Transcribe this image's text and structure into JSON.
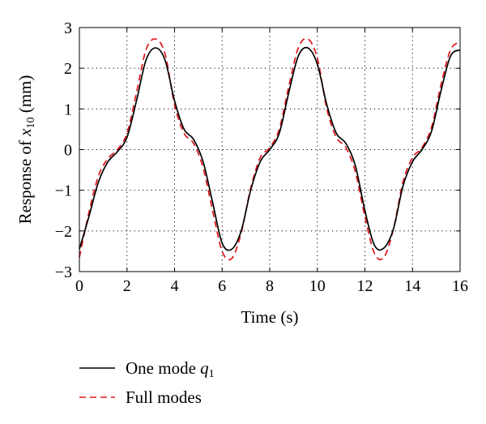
{
  "chart_data": {
    "type": "line",
    "xlabel": "Time (s)",
    "ylabel": {
      "prefix": "Response of ",
      "var": "x",
      "sub": "10",
      "suffix": " (mm)"
    },
    "xlim": [
      0,
      16
    ],
    "ylim": [
      -3,
      3
    ],
    "xticks": [
      0,
      2,
      4,
      6,
      8,
      10,
      12,
      14,
      16
    ],
    "yticks": [
      3,
      2,
      1,
      0,
      -1,
      -2,
      -3
    ],
    "xtick_labels": [
      "0",
      "2",
      "4",
      "6",
      "8",
      "10",
      "12",
      "14",
      "16"
    ],
    "ytick_labels": [
      "3",
      "2",
      "1",
      "0",
      "−1",
      "−2",
      "−3"
    ],
    "grid": true,
    "legend_position": "below plot",
    "series": [
      {
        "name_prefix": "One mode ",
        "name_var": "q",
        "name_sub": "1",
        "style": "solid",
        "color": "#000000",
        "x": [
          0,
          0.4,
          0.8,
          1.2,
          1.6,
          2.0,
          2.4,
          2.8,
          3.2,
          3.6,
          4.0,
          4.4,
          4.8,
          5.2,
          5.6,
          6.0,
          6.4,
          6.8,
          7.2,
          7.6,
          8.0,
          8.4,
          8.8,
          9.2,
          9.6,
          10.0,
          10.4,
          10.8,
          11.2,
          11.6,
          12.0,
          12.4,
          12.8,
          13.2,
          13.6,
          14.0,
          14.4,
          14.8,
          15.2,
          15.6,
          16.0
        ],
        "y": [
          -2.45,
          -1.65,
          -0.8,
          -0.3,
          -0.05,
          0.3,
          1.2,
          2.2,
          2.5,
          2.2,
          1.2,
          0.5,
          0.25,
          -0.3,
          -1.3,
          -2.3,
          -2.45,
          -2.0,
          -1.0,
          -0.3,
          0.0,
          0.4,
          1.4,
          2.3,
          2.5,
          2.1,
          1.1,
          0.4,
          0.15,
          -0.4,
          -1.5,
          -2.35,
          -2.42,
          -1.95,
          -0.9,
          -0.3,
          0.0,
          0.45,
          1.45,
          2.3,
          2.45
        ]
      },
      {
        "name": "Full modes",
        "style": "dashed",
        "color": "#e0151b",
        "x": [
          0,
          0.4,
          0.8,
          1.2,
          1.6,
          2.0,
          2.4,
          2.8,
          3.2,
          3.6,
          4.0,
          4.4,
          4.8,
          5.2,
          5.6,
          6.0,
          6.4,
          6.8,
          7.2,
          7.6,
          8.0,
          8.4,
          8.8,
          9.2,
          9.6,
          10.0,
          10.4,
          10.8,
          11.2,
          11.6,
          12.0,
          12.4,
          12.8,
          13.2,
          13.6,
          14.0,
          14.4,
          14.8,
          15.2,
          15.6,
          16.0
        ],
        "y": [
          -2.65,
          -1.55,
          -0.65,
          -0.22,
          0.0,
          0.4,
          1.4,
          2.45,
          2.72,
          2.35,
          1.1,
          0.4,
          0.15,
          -0.45,
          -1.5,
          -2.5,
          -2.68,
          -2.05,
          -0.95,
          -0.2,
          0.05,
          0.5,
          1.55,
          2.5,
          2.72,
          2.25,
          1.0,
          0.3,
          0.05,
          -0.55,
          -1.65,
          -2.55,
          -2.65,
          -1.95,
          -0.8,
          -0.2,
          0.05,
          0.55,
          1.6,
          2.45,
          2.65
        ]
      }
    ]
  }
}
